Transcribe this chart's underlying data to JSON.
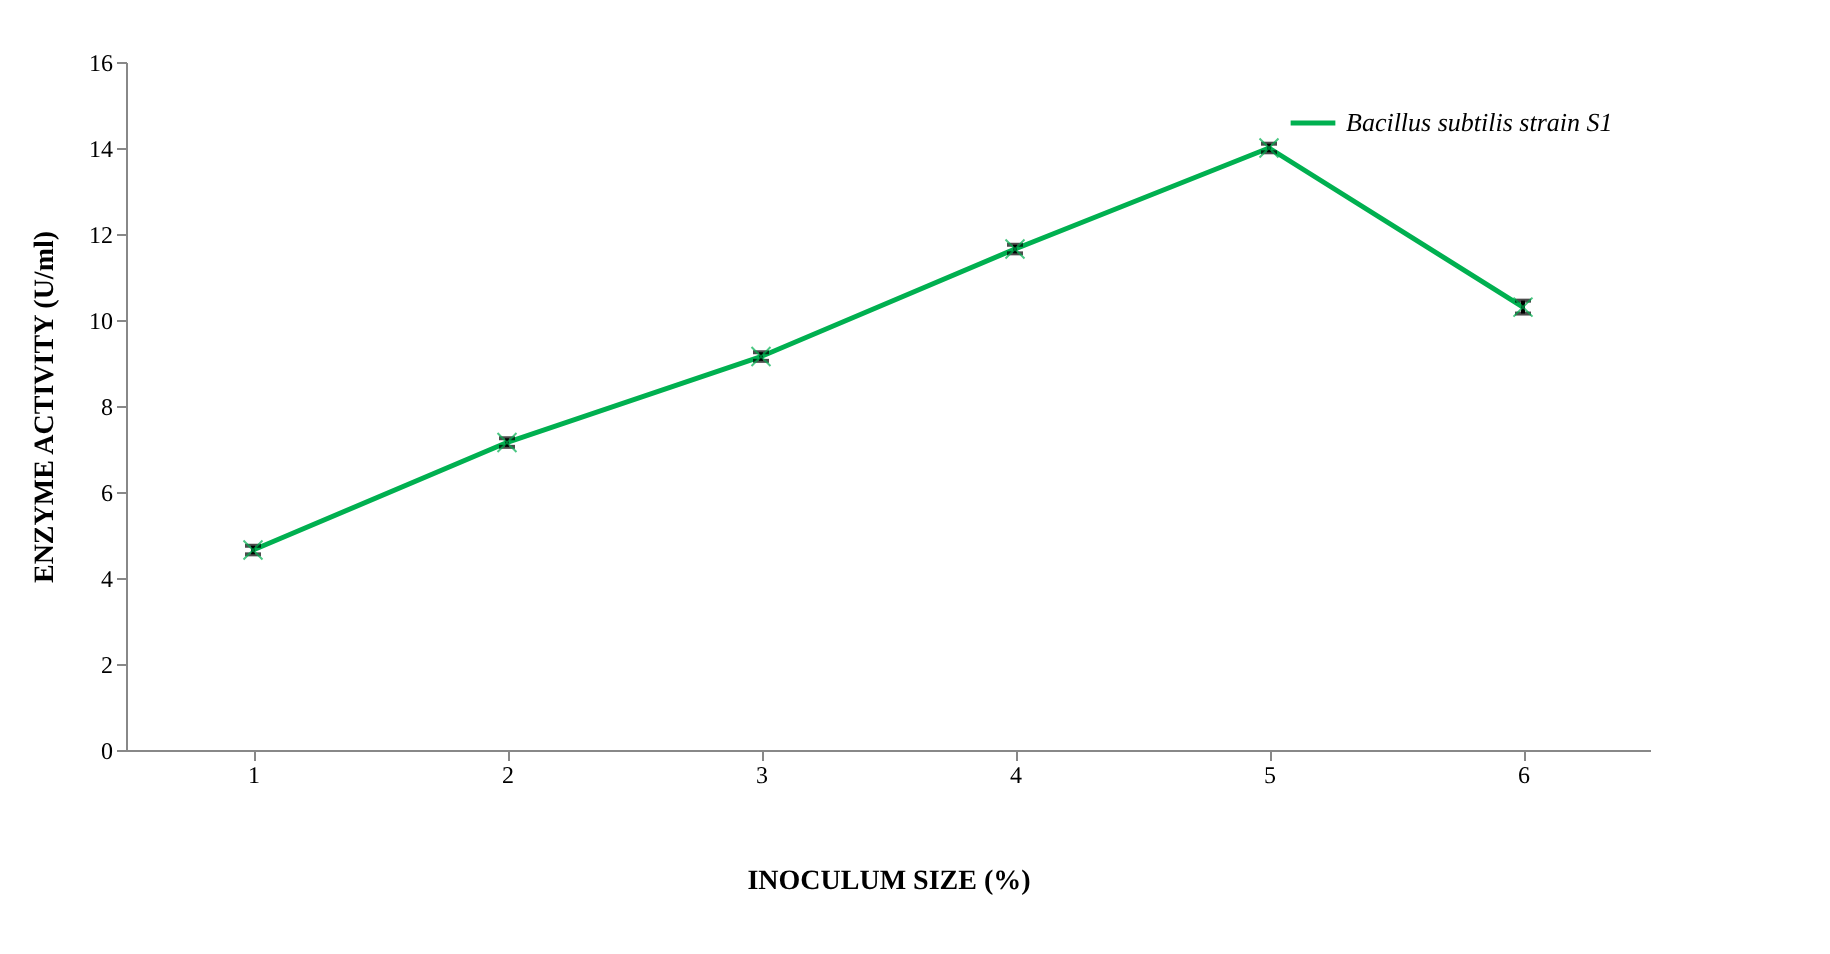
{
  "chart_data": {
    "type": "line",
    "xlabel": "INOCULUM SIZE (%)",
    "ylabel": "ENZYME ACTIVITY (U/ml)",
    "categories": [
      "1",
      "2",
      "3",
      "4",
      "5",
      "6"
    ],
    "series": [
      {
        "name": "Bacillus subtilis strain S1",
        "color": "#00b050",
        "values": [
          4.65,
          7.15,
          9.15,
          11.65,
          14.0,
          10.3
        ],
        "errors": [
          0.1,
          0.1,
          0.1,
          0.1,
          0.1,
          0.15
        ]
      }
    ],
    "ylim": [
      0,
      16
    ],
    "yticks": [
      0,
      2,
      4,
      6,
      8,
      10,
      12,
      14,
      16
    ],
    "grid": false,
    "legend": "top right",
    "marker": "cross",
    "line_style": "solid"
  }
}
